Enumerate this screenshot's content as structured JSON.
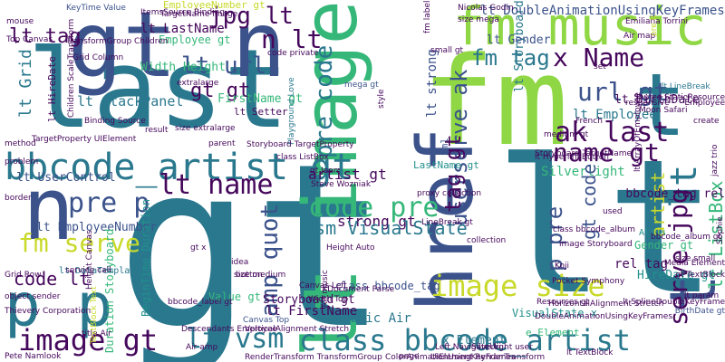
{
  "palette": {
    "purple": "#46085c",
    "indigo": "#3b528b",
    "teal": "#2a788e",
    "cyan": "#21908c",
    "green": "#35b779",
    "lime": "#8fd744",
    "yellow": "#c8d92a",
    "darkgreen": "#1f9e89"
  },
  "words": [
    "gt",
    "lt",
    "fm",
    "last",
    "gt n",
    "lt image",
    "href",
    "fm music",
    "bbcode_artist gt",
    "class bbcode_artist",
    "p p",
    "n",
    "t",
    "lt",
    "t",
    "code pre",
    "image size",
    "image gt",
    "lt vsm",
    "serve jpg",
    "lt name",
    "ak last",
    "name gt",
    "pre p",
    "fm serve",
    "url gt",
    "amp quot",
    "lt url",
    "fm tag",
    "x Name",
    "n lt",
    "pre code",
    "jpg lt",
    "lt tag",
    "gt gt",
    "userserve ak",
    "tag gt",
    "p pre",
    "artist gt",
    "strong gt",
    "vsm VisualState",
    "lt ListBox",
    "artist",
    "lt Grid",
    "code lt",
    "lt LastName",
    "lt EmployeeNumber",
    "lt UserControl",
    "lt StackPanel",
    "lt Employee",
    "lt strong",
    "Silverlight",
    "lt FirstName",
    "music Air",
    "Storyboard gt",
    "lt Storyboard",
    "LastName gt",
    "bbcode_tag rel",
    "KeyTime Value",
    "EmployeeNumber gt",
    "TargetName image",
    "lt DoubleAnimationUsingKeyFrames",
    "size mega",
    "lt Gender",
    "Employee gt",
    "Width Height",
    "lt BirthDate",
    "FirstName gt",
    "lt Setter",
    "HireDate gt",
    "lt HireDate",
    "rel tag",
    "Gender gt",
    "Value gt",
    "gt code",
    "x Element",
    "VisualState x",
    "class bbcode_tag",
    "Canvas Top",
    "Grid Row",
    "BeginTime Duration",
    "Duration Storyboard",
    "lt DataTemplate",
    "e Element",
    "Alias",
    "size extralarge",
    "Grid Column",
    "small gt",
    "medium gt",
    "size small",
    "size medium",
    "lt LineBreak",
    "Storyboard TargetName",
    "Pocket Symphony",
    "image Storyboard",
    "class bbcode_album",
    "LineBreak gt",
    "mega gt",
    "title Air",
    "TextBlock Text",
    "BirthDate gt",
    "xml",
    "idea",
    "button",
    "Resources gt",
    "Koji",
    "style",
    "gt Jean",
    "Air amp",
    "Moon Safari",
    "Children ScaleTransform",
    "RenderTransform TransformGroup",
    "UIElement RenderTransform",
    "lt TextBlock",
    "lt SplineDoubleKeyFrame",
    "Descendants Employee",
    "Pete Namlook",
    "Thievery Corporation",
    "Left NavigateUri",
    "VerticalAlignment Stretch",
    "HorizontalAlignment Stretch",
    "Playground Love",
    "Nicolas Godin",
    "Top Canvas",
    "TransformGroup Children",
    "ItemsSource Binding",
    "code private",
    "Binding Source",
    "service call",
    "object sender",
    "TargetProperty UIElement",
    "Height Canvas",
    "Storyboard TargetProperty",
    "lt HyperlinkButton",
    "mouse",
    "method",
    "problem",
    "border",
    "create",
    "result",
    "parent",
    "proxy collection",
    "collection",
    "used",
    "page",
    "set",
    "Air map",
    "French",
    "Air music",
    "Silverlight user",
    "bbcode_album gt",
    "bbcode_label gt",
    "Media Element",
    "gt TextBlock",
    "lt param",
    "gt x",
    "Height Auto",
    "class ListBox",
    "Source StaticResource",
    "responsive",
    "Emiliana Torrini",
    "fm label",
    "extralarge",
    "pre lt",
    "Canvas Left",
    "Steve Wozniak",
    "XDocument Parse",
    "Width Top",
    "DoubleAnimationUsingKeyFrames",
    "ColorAnimationUsingKeyFrames",
    "jazz trio",
    "Sophie",
    "lt ArrayOfEmployee",
    "Employee"
  ]
}
